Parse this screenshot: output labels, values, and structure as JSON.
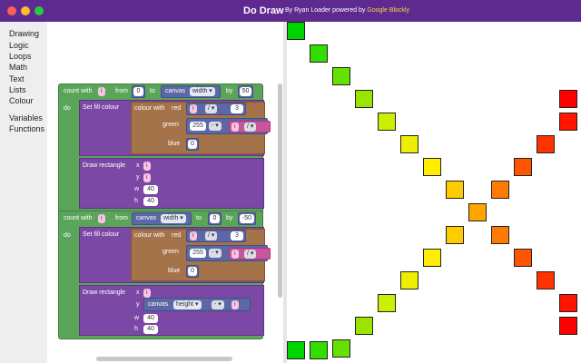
{
  "window": {
    "title": "Do Draw",
    "subtitle_prefix": "By Ryan Loader powered by",
    "subtitle_link": "Google Blockly"
  },
  "sidebar": {
    "categories": [
      "Drawing",
      "Logic",
      "Loops",
      "Math",
      "Text",
      "Lists",
      "Colour",
      "Variables",
      "Functions"
    ]
  },
  "blocks": {
    "loop1": {
      "count_with": "count with",
      "var": "i",
      "from_label": "from",
      "from_value": "0",
      "to_label": "to",
      "canvas_label": "canvas",
      "width_prop": "width",
      "by_label": "by",
      "by_value": "50",
      "do_label": "do",
      "fill": {
        "label": "Set fill colour",
        "colour_with": "colour with",
        "red": "red",
        "green": "green",
        "blue": "blue",
        "op": "/",
        "red_divisor": "3",
        "green_value": "255",
        "blue_value": "0"
      },
      "rect": {
        "label": "Draw rectangle",
        "x": "x",
        "y": "y",
        "w": "w",
        "h": "h",
        "w_value": "40",
        "h_value": "40"
      }
    },
    "loop2": {
      "count_with": "count with",
      "var": "i",
      "from_label": "from",
      "canvas_label": "canvas",
      "width_prop": "width",
      "to_label": "to",
      "to_value": "0",
      "by_label": "by",
      "by_value": "-50",
      "do_label": "do",
      "fill": {
        "label": "Set fill colour",
        "colour_with": "colour with",
        "red": "red",
        "green": "green",
        "blue": "blue",
        "op": "/",
        "red_divisor": "3",
        "green_value": "255",
        "blue_value": "0"
      },
      "rect": {
        "label": "Draw rectangle",
        "x": "x",
        "y": "y",
        "canvas_label": "canvas",
        "height_prop": "height",
        "op": "-",
        "w": "w",
        "h": "h",
        "w_value": "40",
        "h_value": "40"
      }
    }
  },
  "canvas_squares": [
    {
      "color": "#00d400"
    },
    {
      "color": "#33dd00"
    },
    {
      "color": "#66e000"
    },
    {
      "color": "#99e500"
    },
    {
      "color": "#ccee00"
    },
    {
      "color": "#eeee00"
    },
    {
      "color": "#ffee00"
    },
    {
      "color": "#ffcc00"
    },
    {
      "color": "#ffa500"
    },
    {
      "color": "#ff7a00"
    },
    {
      "color": "#ff5500"
    },
    {
      "color": "#ff3300"
    },
    {
      "color": "#ff1500"
    },
    {
      "color": "#ff0000"
    },
    {
      "color": "#ff0000"
    },
    {
      "color": "#ff1500"
    },
    {
      "color": "#ff3300"
    },
    {
      "color": "#ff5500"
    },
    {
      "color": "#ff7a00"
    },
    {
      "color": "#ffa500"
    },
    {
      "color": "#ffcc00"
    },
    {
      "color": "#ffee00"
    },
    {
      "color": "#eeee00"
    },
    {
      "color": "#ccee00"
    },
    {
      "color": "#99e500"
    },
    {
      "color": "#66e000"
    },
    {
      "color": "#33dd00"
    },
    {
      "color": "#00d400"
    }
  ]
}
